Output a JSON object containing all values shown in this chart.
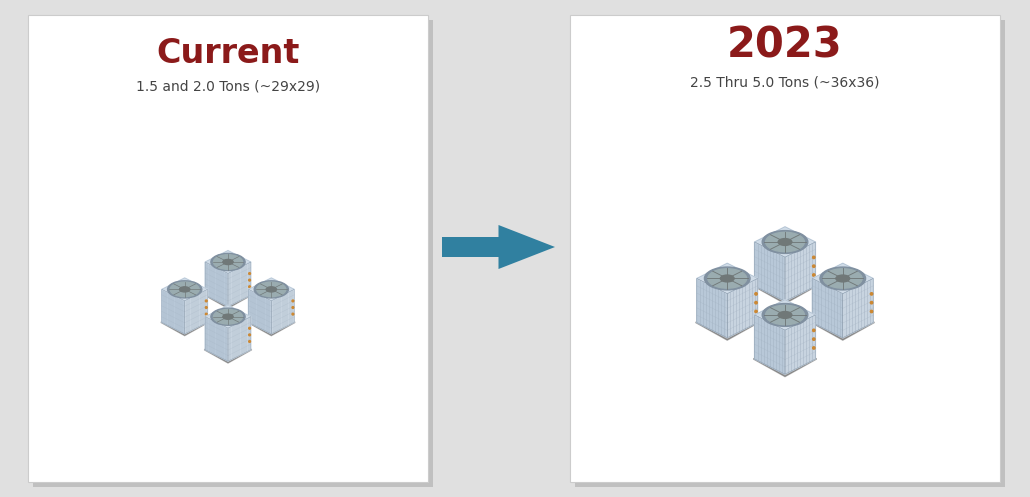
{
  "bg_color": "#e0e0e0",
  "card_color": "#ffffff",
  "card_shadow": "#c0c0c0",
  "left_title": "Current",
  "left_title_color": "#8b1a1a",
  "left_subtitle": "1.5 and 2.0 Tons (~29x29)",
  "left_subtitle_color": "#444444",
  "right_title": "2023",
  "right_title_color": "#8b1a1a",
  "right_subtitle": "2.5 Thru 5.0 Tons (~36x36)",
  "right_subtitle_color": "#444444",
  "arrow_color": "#3080a0",
  "body_light": "#c8d4e0",
  "body_mid": "#b8c8d8",
  "body_dark": "#a8b8cc",
  "top_light": "#d0dce8",
  "top_dark": "#b0c0d0",
  "fan_outer": "#8090a0",
  "fan_inner": "#909898",
  "fan_hub": "#707878",
  "grille_line": "#a0b0c0",
  "shadow_color": "#505050",
  "accent_color": "#cc8833",
  "title_fontsize": 24,
  "subtitle_fontsize": 10
}
